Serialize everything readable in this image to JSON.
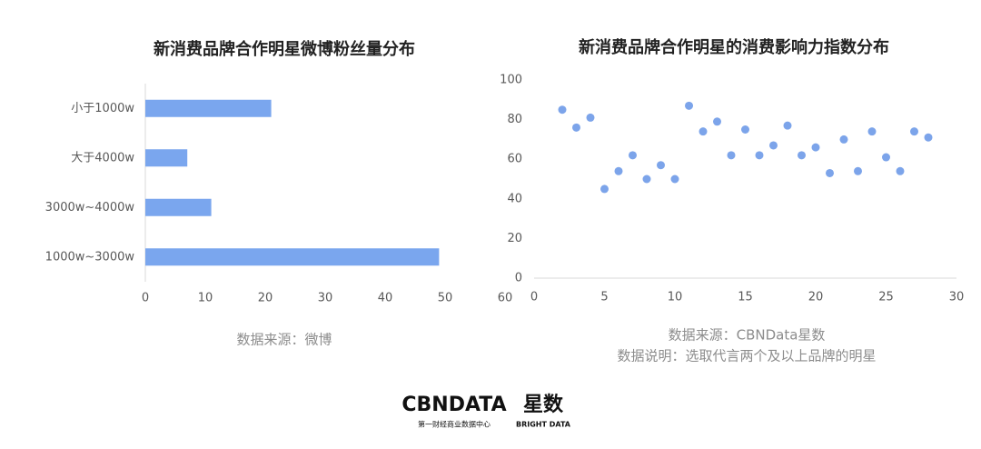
{
  "chart_data": [
    {
      "type": "bar",
      "orientation": "horizontal",
      "title": "新消费品牌合作明星微博粉丝量分布",
      "categories": [
        "小于1000w",
        "大于4000w",
        "3000w~4000w",
        "1000w~3000w"
      ],
      "values": [
        21,
        7,
        11,
        49
      ],
      "color": "#7aa6ee",
      "xlim": [
        0,
        60
      ],
      "xticks": [
        0,
        10,
        20,
        30,
        40,
        50,
        60
      ]
    },
    {
      "type": "scatter",
      "title": "新消费品牌合作明星的消费影响力指数分布",
      "x": [
        2,
        3,
        4,
        5,
        6,
        7,
        8,
        9,
        10,
        11,
        12,
        13,
        14,
        15,
        16,
        17,
        18,
        19,
        20,
        21,
        22,
        23,
        24,
        25,
        26,
        27,
        28
      ],
      "values": [
        85,
        76,
        81,
        45,
        54,
        62,
        50,
        57,
        50,
        87,
        74,
        79,
        62,
        75,
        62,
        67,
        77,
        62,
        66,
        53,
        70,
        54,
        74,
        61,
        54,
        74,
        71
      ],
      "color": "#7ca4ea",
      "xlim": [
        0,
        30
      ],
      "xticks": [
        0,
        5,
        10,
        15,
        20,
        25,
        30
      ],
      "ylim": [
        0,
        100
      ],
      "yticks": [
        0,
        20,
        40,
        60,
        80,
        100
      ]
    }
  ],
  "notes": {
    "left_source": "数据来源：微博",
    "right_source": "数据来源：CBNData星数",
    "right_note": "数据说明：选取代言两个及以上品牌的明星"
  },
  "logo": {
    "brand": "CBNDATA",
    "brand_sub": "第一财经商业数据中心",
    "product": "星数",
    "product_sub": "BRIGHT DATA"
  }
}
